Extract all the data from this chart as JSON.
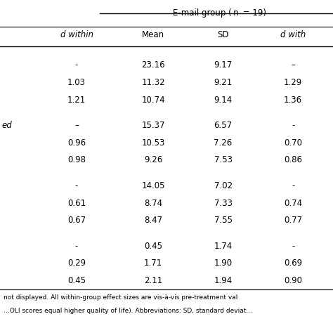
{
  "header_group": "E-mail group ( n  = 19)",
  "col_headers": [
    "d within",
    "Mean",
    "SD",
    "d with"
  ],
  "sections": [
    {
      "label": "",
      "rows": [
        [
          "-",
          "23.16",
          "9.17",
          "–"
        ],
        [
          "1.03",
          "11.32",
          "9.21",
          "1.29"
        ],
        [
          "1.21",
          "10.74",
          "9.14",
          "1.36"
        ]
      ]
    },
    {
      "label": "ed",
      "rows": [
        [
          "–",
          "15.37",
          "6.57",
          "-"
        ],
        [
          "0.96",
          "10.53",
          "7.26",
          "0.70"
        ],
        [
          "0.98",
          "9.26",
          "7.53",
          "0.86"
        ]
      ]
    },
    {
      "label": "",
      "rows": [
        [
          "-",
          "14.05",
          "7.02",
          "-"
        ],
        [
          "0.61",
          "8.74",
          "7.33",
          "0.74"
        ],
        [
          "0.67",
          "8.47",
          "7.55",
          "0.77"
        ]
      ]
    },
    {
      "label": "",
      "rows": [
        [
          "-",
          "0.45",
          "1.74",
          "-"
        ],
        [
          "0.29",
          "1.71",
          "1.90",
          "0.69"
        ],
        [
          "0.45",
          "2.11",
          "1.94",
          "0.90"
        ]
      ]
    }
  ],
  "footnote": "not displayed. All within-group effect sizes are vis-à-vis pre-treatment val\n…OLI scores equal higher quality of life). Abbreviations: SD, standard deviat…",
  "bg_color": "#ffffff",
  "text_color": "#000000",
  "font_size": 8.5,
  "header_font_size": 8.5
}
